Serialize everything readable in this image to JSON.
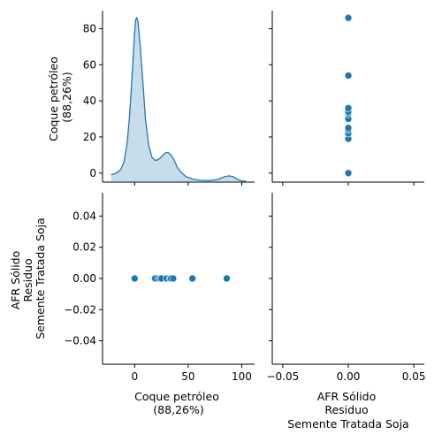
{
  "chart_data": {
    "type": "scatter",
    "variables": [
      {
        "label_lines": [
          "Coque petróleo",
          "(88,26%)"
        ]
      },
      {
        "label_lines": [
          "AFR Sólido",
          "Residuo",
          "Semente Tratada Soja"
        ]
      }
    ],
    "colors": {
      "series": "#1f77b4",
      "kde_fill": "#1f77b4"
    },
    "grid": false,
    "panels": [
      {
        "position": "top-left",
        "type": "kde",
        "xlim": [
          -30,
          112
        ],
        "ylim": [
          -5,
          90
        ],
        "y_ticks": [
          "0",
          "20",
          "40",
          "60",
          "80"
        ],
        "y_tick_values": [
          0,
          20,
          40,
          60,
          80
        ],
        "x_tick_values": [
          0,
          50,
          100
        ],
        "curve": [
          [
            -22,
            -1
          ],
          [
            -17,
            0
          ],
          [
            -13,
            2
          ],
          [
            -10,
            6
          ],
          [
            -7,
            17
          ],
          [
            -5,
            30
          ],
          [
            -3,
            48
          ],
          [
            -1,
            68
          ],
          [
            0,
            78
          ],
          [
            1,
            85
          ],
          [
            2,
            86
          ],
          [
            3,
            84
          ],
          [
            5,
            72
          ],
          [
            8,
            48
          ],
          [
            10,
            30
          ],
          [
            13,
            16
          ],
          [
            16,
            9
          ],
          [
            19,
            7
          ],
          [
            22,
            7.5
          ],
          [
            25,
            9
          ],
          [
            28,
            11
          ],
          [
            31,
            11.5
          ],
          [
            34,
            10
          ],
          [
            37,
            7
          ],
          [
            40,
            3
          ],
          [
            44,
            0
          ],
          [
            48,
            -2
          ],
          [
            55,
            -3.5
          ],
          [
            62,
            -4
          ],
          [
            70,
            -4.2
          ],
          [
            78,
            -3.5
          ],
          [
            84,
            -2
          ],
          [
            88,
            -1.5
          ],
          [
            92,
            -2
          ],
          [
            96,
            -3.5
          ],
          [
            100,
            -4.3
          ],
          [
            104,
            -4.5
          ]
        ]
      },
      {
        "position": "top-right",
        "type": "scatter",
        "xlim": [
          -0.058,
          0.058
        ],
        "ylim": [
          -5,
          90
        ],
        "x": [
          0,
          0,
          0,
          0,
          0,
          0,
          0,
          0,
          0,
          0,
          0
        ],
        "y": [
          0,
          19,
          22,
          24,
          25,
          30,
          33,
          34,
          36,
          54,
          86
        ]
      },
      {
        "position": "bottom-left",
        "type": "scatter",
        "xlim": [
          -30,
          112
        ],
        "ylim": [
          -0.055,
          0.055
        ],
        "x": [
          0,
          19,
          22,
          24,
          25,
          30,
          33,
          34,
          36,
          54,
          86
        ],
        "y": [
          0,
          0,
          0,
          0,
          0,
          0,
          0,
          0,
          0,
          0,
          0
        ],
        "x_ticks": [
          "0",
          "50",
          "100"
        ],
        "x_tick_values": [
          0,
          50,
          100
        ],
        "y_ticks": [
          "−0.04",
          "−0.02",
          "0.00",
          "0.02",
          "0.04"
        ],
        "y_tick_values": [
          -0.04,
          -0.02,
          0,
          0.02,
          0.04
        ]
      },
      {
        "position": "bottom-right",
        "type": "empty",
        "xlim": [
          -0.058,
          0.058
        ],
        "x_ticks": [
          "−0.05",
          "0.00",
          "0.05"
        ],
        "x_tick_values": [
          -0.05,
          0,
          0.05
        ]
      }
    ]
  }
}
